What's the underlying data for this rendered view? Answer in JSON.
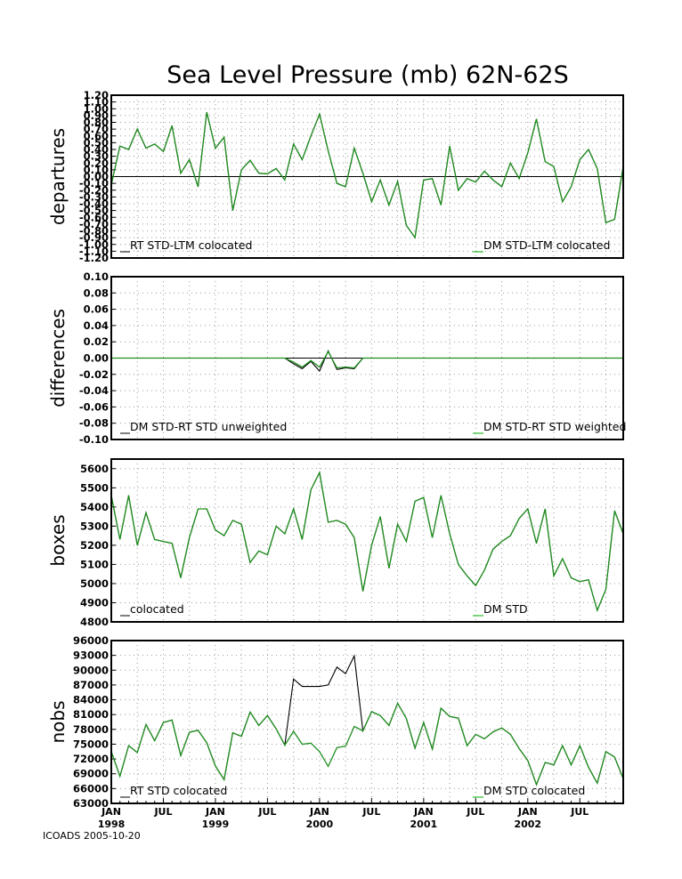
{
  "title": "Sea Level Pressure (mb) 62N-62S",
  "footer": "ICOADS 2005-10-20",
  "colors": {
    "series_a": "#000000",
    "series_b": "#00b000",
    "overlap": "#1f8f1f",
    "grid": "#999999"
  },
  "x_axis": {
    "months": [
      "JAN",
      "JUL",
      "JAN",
      "JUL",
      "JAN",
      "JUL",
      "JAN",
      "JUL",
      "JAN",
      "JUL"
    ],
    "years": [
      "1998",
      "1999",
      "2000",
      "2001",
      "2002"
    ]
  },
  "chart_data": [
    {
      "type": "line",
      "ylabel": "departures",
      "ylim": [
        -1.2,
        1.2
      ],
      "yticks": [
        "-1.20",
        "-1.10",
        "-1.00",
        "-0.90",
        "-0.80",
        "-0.70",
        "-0.60",
        "-0.50",
        "-0.40",
        "-0.30",
        "-0.20",
        "-0.10",
        "0.00",
        "0.10",
        "0.20",
        "0.30",
        "0.40",
        "0.50",
        "0.60",
        "0.70",
        "0.80",
        "0.90",
        "1.00",
        "1.10",
        "1.20"
      ],
      "zero_line": true,
      "series": [
        {
          "name": "RT STD-LTM colocated",
          "values": [
            -0.12,
            0.45,
            0.4,
            0.7,
            0.42,
            0.48,
            0.37,
            0.75,
            0.05,
            0.25,
            -0.15,
            0.95,
            0.42,
            0.58,
            -0.5,
            0.1,
            0.24,
            0.05,
            0.04,
            0.12,
            -0.05,
            0.48,
            0.25,
            0.6,
            0.92,
            0.38,
            -0.1,
            -0.15,
            0.42,
            0.05,
            -0.37,
            -0.05,
            -0.42,
            -0.07,
            -0.72,
            -0.9,
            -0.05,
            -0.03,
            -0.42,
            0.45,
            -0.2,
            -0.03,
            -0.08,
            0.08,
            -0.05,
            -0.15,
            0.2,
            -0.03,
            0.35,
            0.85,
            0.22,
            0.15,
            -0.37,
            -0.15,
            0.25,
            0.4,
            0.12,
            -0.68,
            -0.63,
            0.15
          ]
        },
        {
          "name": "DM STD-LTM colocated",
          "values": [
            -0.12,
            0.45,
            0.4,
            0.7,
            0.42,
            0.48,
            0.37,
            0.75,
            0.05,
            0.25,
            -0.15,
            0.95,
            0.42,
            0.58,
            -0.5,
            0.1,
            0.24,
            0.05,
            0.04,
            0.12,
            -0.05,
            0.48,
            0.25,
            0.6,
            0.92,
            0.38,
            -0.1,
            -0.15,
            0.42,
            0.05,
            -0.37,
            -0.05,
            -0.42,
            -0.07,
            -0.72,
            -0.9,
            -0.05,
            -0.03,
            -0.42,
            0.45,
            -0.2,
            -0.03,
            -0.08,
            0.08,
            -0.05,
            -0.15,
            0.2,
            -0.03,
            0.35,
            0.85,
            0.22,
            0.15,
            -0.37,
            -0.15,
            0.25,
            0.4,
            0.12,
            -0.68,
            -0.63,
            0.15
          ]
        }
      ]
    },
    {
      "type": "line",
      "ylabel": "differences",
      "ylim": [
        -0.1,
        0.1
      ],
      "yticks": [
        "-0.10",
        "-0.08",
        "-0.06",
        "-0.04",
        "-0.02",
        "0.00",
        "0.02",
        "0.04",
        "0.06",
        "0.08",
        "0.10"
      ],
      "zero_line": true,
      "series": [
        {
          "name": "DM STD-RT STD unweighted",
          "values": [
            0,
            0,
            0,
            0,
            0,
            0,
            0,
            0,
            0,
            0,
            0,
            0,
            0,
            0,
            0,
            0,
            0,
            0,
            0,
            0,
            0,
            -0.007,
            -0.013,
            -0.004,
            -0.016,
            0.009,
            -0.014,
            -0.012,
            -0.013,
            0,
            0,
            0,
            0,
            0,
            0,
            0,
            0,
            0,
            0,
            0,
            0,
            0,
            0,
            0,
            0,
            0,
            0,
            0,
            0,
            0,
            0,
            0,
            0,
            0,
            0,
            0,
            0,
            0,
            0,
            0
          ]
        },
        {
          "name": "DM STD-RT STD weighted",
          "values": [
            0,
            0,
            0,
            0,
            0,
            0,
            0,
            0,
            0,
            0,
            0,
            0,
            0,
            0,
            0,
            0,
            0,
            0,
            0,
            0,
            0,
            -0.005,
            -0.011,
            -0.003,
            -0.011,
            0.008,
            -0.012,
            -0.011,
            -0.012,
            0,
            0,
            0,
            0,
            0,
            0,
            0,
            0,
            0,
            0,
            0,
            0,
            0,
            0,
            0,
            0,
            0,
            0,
            0,
            0,
            0,
            0,
            0,
            0,
            0,
            0,
            0,
            0,
            0,
            0,
            0
          ]
        }
      ]
    },
    {
      "type": "line",
      "ylabel": "boxes",
      "ylim": [
        4800,
        5650
      ],
      "yticks": [
        "4800",
        "4900",
        "5000",
        "5100",
        "5200",
        "5300",
        "5400",
        "5500",
        "5600"
      ],
      "zero_line": false,
      "series": [
        {
          "name": "colocated",
          "values": [
            5460,
            5230,
            5460,
            5200,
            5370,
            5230,
            5220,
            5210,
            5030,
            5240,
            5390,
            5390,
            5280,
            5250,
            5330,
            5310,
            5110,
            5170,
            5150,
            5300,
            5260,
            5390,
            5230,
            5490,
            5580,
            5320,
            5330,
            5310,
            5240,
            4960,
            5200,
            5350,
            5080,
            5310,
            5220,
            5430,
            5450,
            5240,
            5460,
            5260,
            5100,
            5040,
            4990,
            5070,
            5180,
            5220,
            5250,
            5340,
            5390,
            5210,
            5390,
            5040,
            5130,
            5030,
            5010,
            5020,
            4860,
            4970,
            5380,
            5260
          ]
        },
        {
          "name": "DM STD",
          "values": [
            5460,
            5230,
            5460,
            5200,
            5370,
            5230,
            5220,
            5210,
            5030,
            5240,
            5390,
            5390,
            5280,
            5250,
            5330,
            5310,
            5110,
            5170,
            5150,
            5300,
            5260,
            5390,
            5230,
            5490,
            5580,
            5320,
            5330,
            5310,
            5240,
            4960,
            5200,
            5350,
            5080,
            5310,
            5220,
            5430,
            5450,
            5240,
            5460,
            5260,
            5100,
            5040,
            4990,
            5070,
            5180,
            5220,
            5250,
            5340,
            5390,
            5210,
            5390,
            5040,
            5130,
            5030,
            5010,
            5020,
            4860,
            4970,
            5380,
            5260
          ]
        }
      ]
    },
    {
      "type": "line",
      "ylabel": "nobs",
      "ylim": [
        63000,
        96000
      ],
      "yticks": [
        "63000",
        "66000",
        "69000",
        "72000",
        "75000",
        "78000",
        "81000",
        "84000",
        "87000",
        "90000",
        "93000",
        "96000"
      ],
      "zero_line": false,
      "series": [
        {
          "name": "RT STD colocated",
          "values": [
            73500,
            68500,
            74700,
            73300,
            79000,
            75700,
            79400,
            79900,
            72700,
            77400,
            77800,
            75300,
            70600,
            67800,
            77300,
            76600,
            81500,
            78800,
            80800,
            78100,
            74800,
            88200,
            86700,
            86700,
            86700,
            87000,
            90600,
            89300,
            92900,
            77700,
            81600,
            80800,
            78800,
            83300,
            80200,
            74200,
            79400,
            74000,
            82300,
            80600,
            80300,
            74700,
            77000,
            76100,
            77500,
            78300,
            77000,
            74100,
            71700,
            66800,
            71300,
            70800,
            74700,
            70800,
            74700,
            70300,
            67100,
            73500,
            72400,
            68000
          ]
        },
        {
          "name": "DM STD colocated",
          "values": [
            73500,
            68500,
            74700,
            73300,
            79000,
            75700,
            79400,
            79900,
            72700,
            77400,
            77800,
            75300,
            70600,
            67800,
            77300,
            76600,
            81500,
            78800,
            80800,
            78100,
            74800,
            77600,
            75000,
            75200,
            73500,
            70500,
            74300,
            74600,
            78600,
            77700,
            81600,
            80800,
            78800,
            83300,
            80200,
            74200,
            79400,
            74000,
            82300,
            80600,
            80300,
            74700,
            77000,
            76100,
            77500,
            78300,
            77000,
            74100,
            71700,
            66800,
            71300,
            70800,
            74700,
            70800,
            74700,
            70300,
            67100,
            73500,
            72400,
            68000
          ]
        }
      ]
    }
  ]
}
